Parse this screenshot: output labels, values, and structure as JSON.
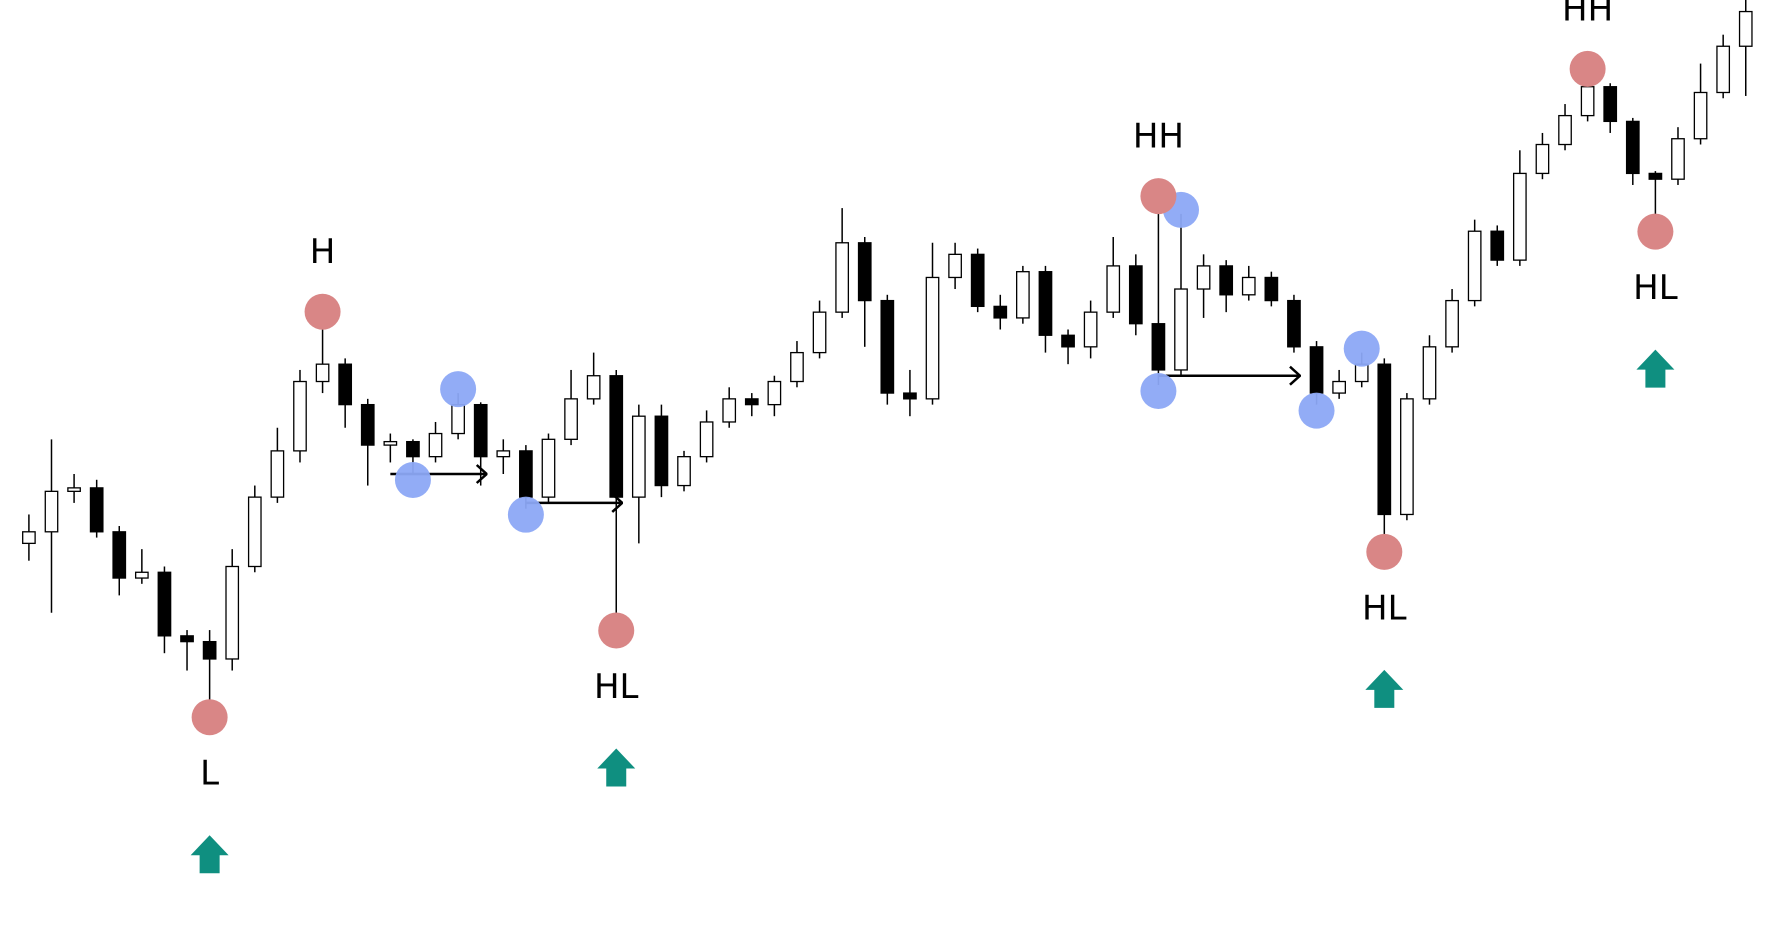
{
  "chart_data": {
    "type": "candlestick",
    "open": [
      350,
      360,
      395,
      398,
      360,
      320,
      325,
      270,
      265,
      250,
      330,
      390,
      430,
      490,
      505,
      470,
      435,
      438,
      425,
      445,
      470,
      425,
      430,
      390,
      440,
      475,
      495,
      390,
      460,
      400,
      425,
      455,
      475,
      470,
      490,
      515,
      550,
      610,
      560,
      480,
      475,
      580,
      600,
      555,
      545,
      585,
      530,
      520,
      550,
      590,
      540,
      500,
      570,
      590,
      565,
      580,
      560,
      520,
      480,
      490,
      505,
      375,
      475,
      520,
      560,
      620,
      595,
      670,
      695,
      720,
      745,
      715,
      670,
      665,
      700,
      740,
      780
    ],
    "high": [
      375,
      440,
      410,
      405,
      365,
      345,
      330,
      275,
      275,
      345,
      400,
      450,
      500,
      540,
      510,
      475,
      445,
      440,
      455,
      480,
      472,
      440,
      435,
      445,
      500,
      515,
      500,
      470,
      470,
      430,
      465,
      485,
      480,
      495,
      525,
      560,
      640,
      615,
      565,
      500,
      610,
      610,
      605,
      565,
      590,
      590,
      535,
      560,
      615,
      600,
      640,
      635,
      600,
      595,
      590,
      585,
      565,
      525,
      500,
      515,
      510,
      480,
      530,
      570,
      630,
      625,
      690,
      705,
      730,
      750,
      748,
      718,
      672,
      710,
      765,
      790,
      820
    ],
    "low": [
      335,
      290,
      385,
      355,
      305,
      315,
      255,
      240,
      210,
      240,
      325,
      385,
      420,
      480,
      450,
      400,
      420,
      410,
      420,
      440,
      400,
      410,
      380,
      385,
      435,
      470,
      285,
      350,
      390,
      395,
      420,
      450,
      460,
      460,
      485,
      510,
      545,
      520,
      470,
      460,
      470,
      570,
      550,
      535,
      540,
      515,
      505,
      510,
      545,
      530,
      487,
      495,
      545,
      550,
      560,
      555,
      515,
      470,
      475,
      485,
      353,
      370,
      470,
      515,
      555,
      590,
      590,
      665,
      690,
      715,
      705,
      660,
      630,
      660,
      695,
      735,
      737
    ],
    "close": [
      360,
      395,
      398,
      360,
      320,
      325,
      270,
      265,
      250,
      330,
      390,
      430,
      490,
      505,
      470,
      435,
      438,
      425,
      445,
      470,
      425,
      430,
      390,
      440,
      475,
      495,
      390,
      460,
      400,
      425,
      455,
      475,
      470,
      490,
      515,
      550,
      610,
      560,
      480,
      475,
      580,
      600,
      555,
      545,
      585,
      530,
      520,
      550,
      590,
      540,
      500,
      570,
      590,
      565,
      580,
      560,
      520,
      480,
      490,
      505,
      375,
      475,
      520,
      560,
      620,
      595,
      670,
      695,
      720,
      745,
      715,
      670,
      665,
      700,
      740,
      780,
      810
    ],
    "ylim": [
      0,
      820
    ],
    "up_color": "#ffffff",
    "down_color": "#000000",
    "swing_color": "#d98686",
    "point_color": "#8ca8f5",
    "signal_color": "#0f8f80",
    "swings": [
      {
        "label": "L",
        "index": 8,
        "at": "low"
      },
      {
        "label": "H",
        "index": 13,
        "at": "high"
      },
      {
        "label": "HL",
        "index": 26,
        "at": "low"
      },
      {
        "label": "HH",
        "index": 50,
        "at": "high"
      },
      {
        "label": "HL",
        "index": 60,
        "at": "low"
      },
      {
        "label": "HH",
        "index": 69,
        "at": "high"
      },
      {
        "label": "HL",
        "index": 72,
        "at": "low"
      }
    ],
    "points": [
      {
        "index": 17,
        "at": "low"
      },
      {
        "index": 19,
        "at": "high"
      },
      {
        "index": 22,
        "at": "low"
      },
      {
        "index": 50,
        "at": "low"
      },
      {
        "index": 51,
        "at": "high"
      },
      {
        "index": 57,
        "at": "low"
      },
      {
        "index": 59,
        "at": "high"
      }
    ],
    "breaks": [
      {
        "from": 16,
        "to": 20,
        "value": 410
      },
      {
        "from": 22,
        "to": 26,
        "value": 385
      },
      {
        "from": 50,
        "to": 56,
        "value": 495
      }
    ]
  }
}
